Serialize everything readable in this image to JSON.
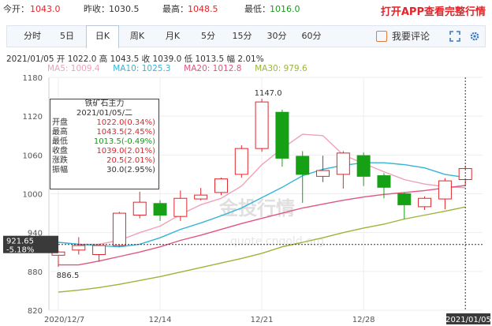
{
  "quote": {
    "open_label": "今开：",
    "open_value": "1043.0",
    "prev_label": "昨收：",
    "prev_value": "1030.5",
    "high_label": "最高：",
    "high_value": "1048.5",
    "low_label": "最低：",
    "low_value": "1016.0",
    "promo": "打开APP查看完整行情"
  },
  "tabs": [
    "分时",
    "5日",
    "日K",
    "周K",
    "月K",
    "5分",
    "15分",
    "30分",
    "60分"
  ],
  "active_tab": "日K",
  "comment_label": "我要评论",
  "info": "2021/01/05  开 1022.0  高 1043.5  收 1039.0  低 1013.5  幅 2.01%",
  "ma_legend": {
    "ma5": "MA5: 1009.4",
    "ma10": "MA10: 1025.3",
    "ma20": "MA20: 1012.8",
    "ma30": "MA30: 979.6"
  },
  "tooltip": {
    "title": "铁矿石主力",
    "date": "2021/01/05/二",
    "rows": [
      {
        "k": "开盘",
        "v": "1022.0(0.34%)"
      },
      {
        "k": "最高",
        "v": "1043.5(2.45%)"
      },
      {
        "k": "最低",
        "v": "1013.5(-0.49%)"
      },
      {
        "k": "收盘",
        "v": "1039.0(2.01%)"
      },
      {
        "k": "涨跌",
        "v": "20.5(2.01%)"
      },
      {
        "k": "振幅",
        "v": "30.0(2.95%)"
      }
    ]
  },
  "cursor": {
    "price": "921.65",
    "pct": "-5.18%",
    "date": "2021/01/05"
  },
  "watermark": "金投行情",
  "watermark_url": "quote.cngold.org",
  "colors": {
    "up": "#e0262b",
    "down": "#16a016",
    "ma5": "#f2a0b8",
    "ma10": "#33b5d6",
    "ma20": "#e0567d",
    "ma30": "#9ab53a"
  },
  "chart_data": {
    "type": "candlestick",
    "ylim": [
      820,
      1180
    ],
    "y_ticks": [
      820,
      880,
      940,
      1000,
      1060,
      1120,
      1180
    ],
    "x_tick_labels": [
      {
        "i": 0,
        "label": "2020/12/7"
      },
      {
        "i": 5,
        "label": "12/14"
      },
      {
        "i": 10,
        "label": "12/21"
      },
      {
        "i": 15,
        "label": "12/28"
      }
    ],
    "max_label": "1147.0",
    "min_label": "886.5",
    "candles": [
      {
        "o": 905,
        "c": 910,
        "h": 912,
        "l": 887
      },
      {
        "o": 913,
        "c": 920,
        "h": 933,
        "l": 906
      },
      {
        "o": 906,
        "c": 920,
        "h": 922,
        "l": 895
      },
      {
        "o": 920,
        "c": 970,
        "h": 972,
        "l": 918
      },
      {
        "o": 967,
        "c": 987,
        "h": 1003,
        "l": 962
      },
      {
        "o": 985,
        "c": 967,
        "h": 990,
        "l": 958
      },
      {
        "o": 965,
        "c": 993,
        "h": 1005,
        "l": 958
      },
      {
        "o": 992,
        "c": 998,
        "h": 1009,
        "l": 990
      },
      {
        "o": 1002,
        "c": 1023,
        "h": 1025,
        "l": 998
      },
      {
        "o": 1030,
        "c": 1070,
        "h": 1075,
        "l": 1025
      },
      {
        "o": 1070,
        "c": 1142,
        "h": 1147,
        "l": 1065
      },
      {
        "o": 1126,
        "c": 1055,
        "h": 1130,
        "l": 1042
      },
      {
        "o": 1058,
        "c": 1030,
        "h": 1066,
        "l": 986
      },
      {
        "o": 1027,
        "c": 1036,
        "h": 1059,
        "l": 1018
      },
      {
        "o": 1030,
        "c": 1063,
        "h": 1066,
        "l": 1008
      },
      {
        "o": 1059,
        "c": 1027,
        "h": 1064,
        "l": 1012
      },
      {
        "o": 1028,
        "c": 1010,
        "h": 1032,
        "l": 993
      },
      {
        "o": 1000,
        "c": 983,
        "h": 1002,
        "l": 961
      },
      {
        "o": 980,
        "c": 993,
        "h": 996,
        "l": 975
      },
      {
        "o": 992,
        "c": 1020,
        "h": 1024,
        "l": 976
      },
      {
        "o": 1022,
        "c": 1039,
        "h": 1043.5,
        "l": 1013.5
      }
    ],
    "series": [
      {
        "name": "MA5",
        "values": [
          925,
          922,
          922,
          928,
          940,
          950,
          968,
          983,
          993,
          1012,
          1045,
          1070,
          1092,
          1090,
          1060,
          1047,
          1034,
          1022,
          1015,
          1011,
          1009.4
        ]
      },
      {
        "name": "MA10",
        "values": [
          925,
          922,
          920,
          918,
          922,
          932,
          945,
          955,
          966,
          978,
          994,
          1010,
          1028,
          1038,
          1044,
          1048,
          1048,
          1045,
          1040,
          1030,
          1025.3
        ]
      },
      {
        "name": "MA20",
        "values": [
          890,
          890,
          896,
          903,
          910,
          918,
          928,
          936,
          945,
          954,
          962,
          970,
          978,
          984,
          990,
          995,
          999,
          1002,
          1005,
          1009,
          1012.8
        ]
      },
      {
        "name": "MA30",
        "values": [
          848,
          851,
          855,
          860,
          866,
          872,
          879,
          886,
          893,
          900,
          908,
          918,
          925,
          932,
          940,
          947,
          953,
          961,
          967,
          973,
          979.6
        ]
      }
    ]
  }
}
